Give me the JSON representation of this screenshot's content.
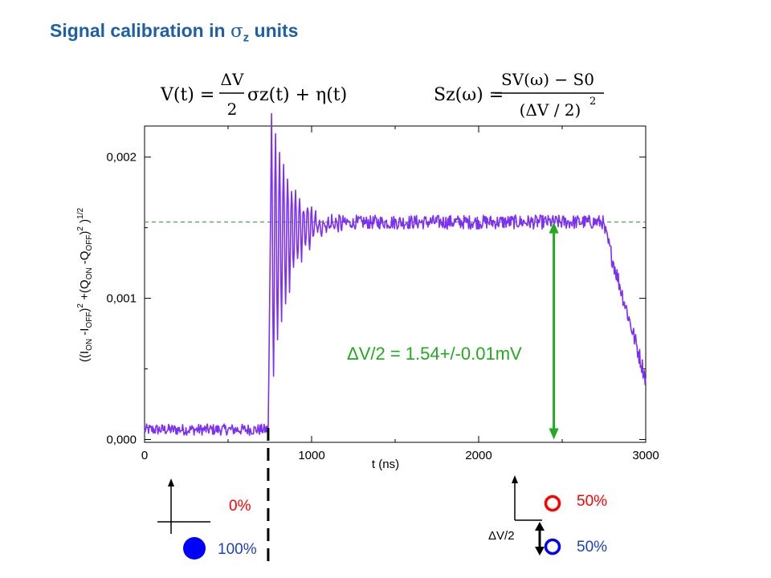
{
  "title": {
    "text_pre": "Signal calibration in ",
    "symbol": "σ",
    "subscript": "z",
    "text_post": " units"
  },
  "equations": {
    "left": {
      "lhs": "V(t) =",
      "frac_num": "ΔV",
      "frac_den": "2",
      "rhs": "σz(t) + η(t)"
    },
    "right": {
      "lhs": "Sz(ω) =",
      "numerator": "SV(ω) − S0",
      "denominator": "(ΔV / 2)",
      "denominator_power": "2"
    }
  },
  "chart_data": {
    "type": "line",
    "xlabel": "t (ns)",
    "ylabel": "((ION-IOFF)2+(QON-QOFF)2)1/2",
    "ylabel_parts": {
      "open": "((I",
      "on1": "ON",
      "minus_i": " -I",
      "off1": "OFF",
      "close_sq1": ")",
      "sq1": "2",
      "plus_q": " +(Q",
      "on2": "ON",
      "minus_q": " -Q",
      "off2": "OFF",
      "close_sq2": ")",
      "sq2": "2",
      "close_root": " )",
      "root": "1/2"
    },
    "xlim": [
      0,
      3000
    ],
    "ylim": [
      -2e-05,
      0.00222
    ],
    "x_ticks": [
      0,
      1000,
      2000,
      3000
    ],
    "x_tick_labels": [
      "0",
      "1000",
      "2000",
      "3000"
    ],
    "y_ticks": [
      0.0,
      0.001,
      0.002
    ],
    "y_tick_labels": [
      "0,000",
      "0,001",
      "0,002"
    ],
    "series": [
      {
        "color": "#7b2ff7",
        "envelope": {
          "baseline_level": 7e-05,
          "baseline_end_x": 740,
          "step_x": 760,
          "peak_value": 0.00215,
          "plateau_level": 0.00154,
          "plateau_end_x": 2740,
          "decay_end_x": 3000,
          "decay_end_value": 0.00043,
          "ringing_decay_ns": 110,
          "ringing_period_ns": 24,
          "noise_amplitude": 5e-05
        }
      }
    ],
    "reference_line": {
      "value": 0.00154,
      "color": "#2e8b2e",
      "style": "dashed"
    },
    "annotation": {
      "text": "ΔV/2 = 1.54+/-0.01mV",
      "color": "#22aa22",
      "arrow_x": 2450,
      "arrow_from": 0.0,
      "arrow_to": 0.00154
    },
    "marker_line": {
      "x": 740,
      "style": "dashed",
      "color": "#000000"
    },
    "grid": false,
    "legend": "none"
  },
  "bottom_left": {
    "label_0": "0%",
    "label_100": "100%",
    "dot_filled_color": "#0000ff",
    "label_0_color": "#ff0000",
    "label_100_color": "#1f3fbf"
  },
  "bottom_right": {
    "label_50_top": "50%",
    "label_50_bottom": "50%",
    "delta_label": "ΔV/2",
    "circle_top_color": "#ff0000",
    "circle_bottom_color": "#0000ff"
  }
}
